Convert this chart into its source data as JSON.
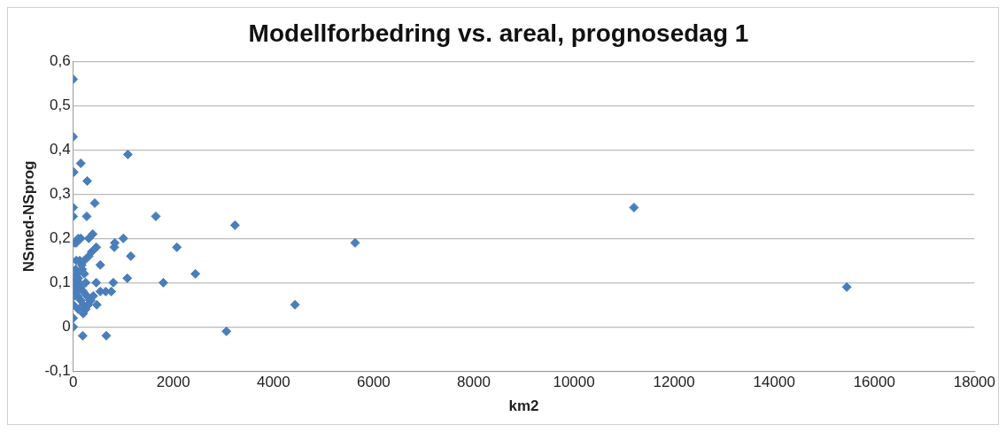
{
  "chart_data": {
    "type": "scatter",
    "title": "Modellforbedring vs. areal, prognosedag 1",
    "xlabel": "km2",
    "ylabel": "NSmed-NSprog",
    "series": [
      {
        "color": "#4a7ebb",
        "x": [
          0,
          0,
          10,
          150,
          280,
          1090,
          0,
          0,
          270,
          430,
          1650,
          3230,
          5630,
          11200,
          15450,
          4430,
          3060,
          190,
          660,
          2070,
          1800,
          2440,
          1080,
          1150,
          1000,
          830,
          820,
          460,
          390,
          310,
          150,
          30,
          60,
          100,
          540,
          800,
          760,
          650,
          540,
          460,
          470,
          370,
          310,
          0,
          0,
          0,
          0,
          50,
          80,
          100,
          120,
          150,
          200,
          60,
          90,
          150,
          200,
          250,
          200,
          100,
          30,
          40,
          130,
          170,
          220,
          250,
          270,
          330,
          400,
          220,
          180,
          300,
          350,
          20,
          60
        ],
        "values": [
          0.56,
          0.43,
          0.35,
          0.37,
          0.33,
          0.39,
          0.27,
          0.25,
          0.25,
          0.28,
          0.25,
          0.23,
          0.19,
          0.27,
          0.09,
          0.05,
          -0.01,
          -0.02,
          -0.02,
          0.18,
          0.1,
          0.12,
          0.11,
          0.16,
          0.2,
          0.19,
          0.18,
          0.18,
          0.21,
          0.2,
          0.2,
          0.19,
          0.19,
          0.2,
          0.14,
          0.1,
          0.08,
          0.08,
          0.08,
          0.1,
          0.05,
          0.17,
          0.16,
          0.1,
          0.05,
          0.02,
          0,
          0.13,
          0.12,
          0.11,
          0.1,
          0.09,
          0.08,
          0.08,
          0.07,
          0.06,
          0.05,
          0.04,
          0.03,
          0.04,
          0.07,
          0.09,
          0.15,
          0.14,
          0.12,
          0.1,
          0.07,
          0.06,
          0.07,
          0.15,
          0.13,
          0.05,
          0.06,
          0.11,
          0.15
        ]
      }
    ],
    "xlim": [
      0,
      18000
    ],
    "xticks": [
      0,
      2000,
      4000,
      6000,
      8000,
      10000,
      12000,
      14000,
      16000,
      18000
    ],
    "ylim": [
      -0.1,
      0.6
    ],
    "yticks": [
      {
        "value": -0.1,
        "label": "-0,1"
      },
      {
        "value": 0,
        "label": "0"
      },
      {
        "value": 0.1,
        "label": "0,1"
      },
      {
        "value": 0.2,
        "label": "0,2"
      },
      {
        "value": 0.3,
        "label": "0,3"
      },
      {
        "value": 0.4,
        "label": "0,4"
      },
      {
        "value": 0.5,
        "label": "0,5"
      },
      {
        "value": 0.6,
        "label": "0,6"
      }
    ],
    "grid": "y",
    "legend": false,
    "marker": "diamond"
  }
}
